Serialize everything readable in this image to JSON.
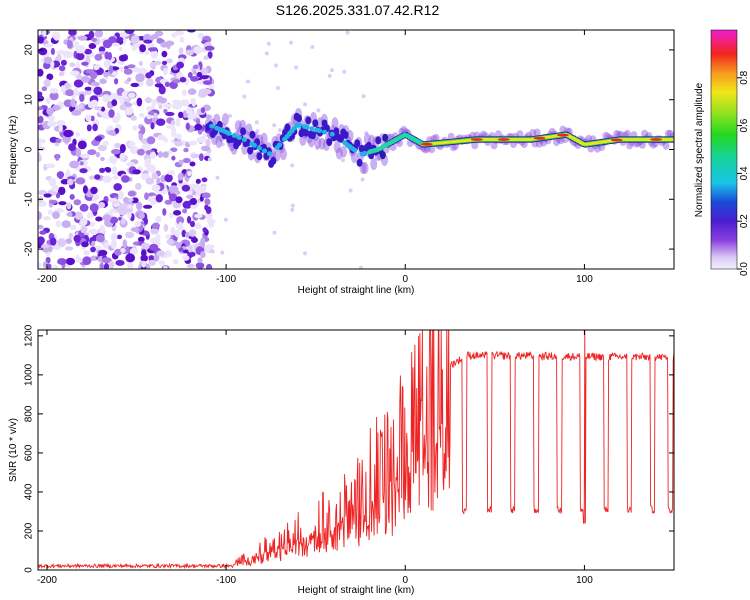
{
  "title": "S126.2025.331.07.42.R12",
  "chart_data": [
    {
      "type": "heatmap",
      "xlabel": "Height of straight line (km)",
      "ylabel": "Frequency (Hz)",
      "xlim": [
        -205,
        150
      ],
      "ylim": [
        -24,
        24
      ],
      "xticks": [
        -200,
        -100,
        0,
        100
      ],
      "yticks": [
        -20,
        -10,
        0,
        10,
        20
      ],
      "colorbar": {
        "label": "Normalized spectral amplitude",
        "range": [
          0,
          1
        ],
        "ticks": [
          0.0,
          0.2,
          0.4,
          0.6,
          0.8
        ]
      },
      "ridge": [
        {
          "x": -110,
          "f": 5
        },
        {
          "x": -90,
          "f": 2
        },
        {
          "x": -75,
          "f": -1
        },
        {
          "x": -60,
          "f": 5
        },
        {
          "x": -40,
          "f": 3
        },
        {
          "x": -25,
          "f": -1
        },
        {
          "x": -15,
          "f": 0
        },
        {
          "x": 0,
          "f": 3
        },
        {
          "x": 10,
          "f": 1
        },
        {
          "x": 40,
          "f": 2
        },
        {
          "x": 70,
          "f": 2
        },
        {
          "x": 90,
          "f": 3
        },
        {
          "x": 100,
          "f": 1
        },
        {
          "x": 120,
          "f": 2
        },
        {
          "x": 150,
          "f": 2
        }
      ]
    },
    {
      "type": "line",
      "xlabel": "Height of straight line (km)",
      "ylabel": "SNR (10 * v/v)",
      "xlim": [
        -205,
        150
      ],
      "ylim": [
        0,
        1230
      ],
      "xticks": [
        -200,
        -100,
        0,
        100
      ],
      "yticks": [
        0,
        200,
        400,
        600,
        800,
        1000,
        1200
      ],
      "color": "#ee2222",
      "envelope": [
        {
          "x": -205,
          "snr": 20
        },
        {
          "x": -100,
          "snr": 20
        },
        {
          "x": -90,
          "snr": 60
        },
        {
          "x": -70,
          "snr": 150
        },
        {
          "x": -50,
          "snr": 250
        },
        {
          "x": -30,
          "snr": 350
        },
        {
          "x": -15,
          "snr": 500
        },
        {
          "x": 0,
          "snr": 650
        },
        {
          "x": 15,
          "snr": 850
        },
        {
          "x": 25,
          "snr": 1050
        },
        {
          "x": 35,
          "snr": 1100
        },
        {
          "x": 150,
          "snr": 1090
        }
      ],
      "dropouts_x": [
        20,
        33,
        47,
        60,
        73,
        86,
        99,
        112,
        125,
        138,
        148
      ],
      "dropout_snr": 310,
      "spike": {
        "x": 100,
        "snr": 1230
      }
    }
  ]
}
